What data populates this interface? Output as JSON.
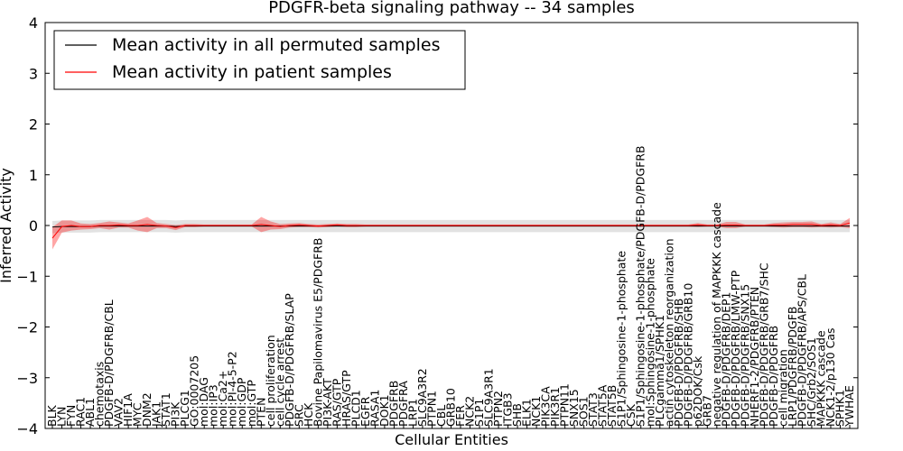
{
  "chart_data": {
    "type": "line",
    "title": "PDGFR-beta signaling pathway -- 34 samples",
    "xlabel": "Cellular Entities",
    "ylabel": "Inferred Activity",
    "ylim": [
      -4,
      4
    ],
    "yticks": [
      "4",
      "3",
      "2",
      "1",
      "0",
      "−1",
      "−2",
      "−3",
      "−4"
    ],
    "grid": false,
    "legend_position": "top-left",
    "categories": [
      "BLK",
      "LYN",
      "FYN",
      "RAC1",
      "ABL1",
      "chemotaxis",
      "PDGFB-D/PDGFRB/CBL",
      "VAV2",
      "HIF1A",
      "MYC",
      "DNM2",
      "JAK1",
      "STAT1",
      "PI3K",
      "PLCG1",
      "GO:0007205",
      "mol:DAG",
      "mol:IP3",
      "mol:Ca2+",
      "mol:PI-4-5-P2",
      "mol:GDP",
      "mol:GTP",
      "PTEN",
      "cell proliferation",
      "cell cycle arrest",
      "PDGFB-D/PDGFRB/SLAP",
      "SRC",
      "HCK",
      "Bovine Papilomavirus E5/PDGFRB",
      "PI3K-AKT",
      "RAS/GTP",
      "HRAS/GTP",
      "PLCD1",
      "EGFR",
      "RASA1",
      "DOK1",
      "PDGFRB",
      "PDGFRA",
      "LRP1",
      "SLC9A3R2",
      "PTPN1",
      "CBL",
      "GRB10",
      "FER",
      "NCK2",
      "S1P1",
      "SLC9A3R1",
      "PTPN2",
      "ITGB3",
      "SHB",
      "ELK1",
      "NCK1",
      "PIK3CA",
      "PIK3R1",
      "PTPN11",
      "SNX15",
      "SOS1",
      "STAT3",
      "STAT5A",
      "STAT5B",
      "S1P1/Sphingosine-1-phosphate",
      "CSK",
      "S1P1/Sphingosine-1-phosphate/PDGFB-D/PDGFRB",
      "mol:Sphingosine-1-phosphate",
      "PLCgamma1/SPHK1",
      "actin cytoskeleton reorganization",
      "PDGFB-D/PDGFRB/SHB",
      "PDGFB-D/PDGFRB/GRB10",
      "p62DOK/Csk",
      "GRB7",
      "negative regulation of MAPKKK cascade",
      "PDGFB-D/PDGFRB/DEP1",
      "PDGFB-D/PDGFRB/LMW-PTP",
      "PDGFB-D/PDGFRB/SNX15",
      "NHERF1-2/PDGFRB/PTEN",
      "PDGFB-D/PDGFRB/GRB7/SHC",
      "PDGFB-D/PDGFRB",
      "cell migration",
      "LRP1/PDGFRB/PDGFB",
      "PDGFB-D/PDGFRB/APS/CBL",
      "SHC/Grb2/SOS1",
      "MAPKKK cascade",
      "NCK1-2/p130 Cas",
      "SPHK1",
      "YWHAE"
    ],
    "series": [
      {
        "name": "Mean activity in all permuted samples",
        "color": "#000000",
        "values": [
          -0.03,
          -0.02,
          -0.02,
          -0.02,
          -0.02,
          -0.01,
          -0.01,
          -0.01,
          -0.01,
          -0.01,
          -0.01,
          -0.01,
          -0.01,
          -0.02,
          -0.01,
          -0.01,
          -0.01,
          -0.01,
          -0.01,
          -0.01,
          -0.01,
          -0.01,
          -0.01,
          -0.01,
          -0.01,
          -0.01,
          -0.01,
          -0.01,
          -0.01,
          -0.01,
          -0.01,
          -0.01,
          -0.01,
          -0.01,
          -0.01,
          -0.01,
          -0.01,
          -0.01,
          -0.01,
          -0.01,
          -0.01,
          -0.01,
          -0.01,
          -0.01,
          -0.01,
          -0.01,
          -0.01,
          -0.01,
          -0.01,
          -0.01,
          -0.01,
          -0.01,
          -0.01,
          -0.01,
          -0.01,
          -0.01,
          -0.01,
          -0.01,
          -0.01,
          -0.01,
          -0.01,
          -0.01,
          -0.01,
          -0.01,
          -0.01,
          -0.01,
          -0.01,
          -0.01,
          -0.01,
          -0.01,
          -0.01,
          -0.01,
          -0.01,
          -0.01,
          -0.01,
          -0.01,
          -0.01,
          -0.01,
          -0.01,
          -0.01,
          -0.01,
          -0.01,
          -0.01,
          -0.01,
          -0.01
        ],
        "band": 0.12
      },
      {
        "name": "Mean activity in patient samples",
        "color": "#ff0000",
        "values": [
          -0.25,
          -0.02,
          0.0,
          -0.02,
          -0.02,
          0.0,
          0.0,
          0.01,
          0.0,
          0.0,
          0.02,
          0.0,
          -0.01,
          -0.04,
          0.0,
          0.0,
          0.0,
          0.0,
          0.0,
          0.0,
          0.0,
          0.0,
          0.02,
          0.0,
          -0.02,
          0.0,
          0.01,
          0.0,
          -0.01,
          0.0,
          0.01,
          0.0,
          0.0,
          0.0,
          0.0,
          0.0,
          0.0,
          0.0,
          0.0,
          0.0,
          0.0,
          0.0,
          0.0,
          0.0,
          0.0,
          0.0,
          0.0,
          0.0,
          0.0,
          0.0,
          0.0,
          0.0,
          0.0,
          0.0,
          0.0,
          0.0,
          0.0,
          0.0,
          0.0,
          0.0,
          0.0,
          0.0,
          0.0,
          0.0,
          0.0,
          0.0,
          0.0,
          0.0,
          0.01,
          0.0,
          0.0,
          0.01,
          0.01,
          0.0,
          0.0,
          0.0,
          0.01,
          0.01,
          0.02,
          0.02,
          0.02,
          0.0,
          0.01,
          0.0,
          0.05
        ],
        "band": [
          0.22,
          0.12,
          0.1,
          0.06,
          0.05,
          0.05,
          0.08,
          0.05,
          0.04,
          0.1,
          0.15,
          0.05,
          0.04,
          0.05,
          0.03,
          0.03,
          0.02,
          0.02,
          0.02,
          0.02,
          0.02,
          0.02,
          0.15,
          0.08,
          0.05,
          0.04,
          0.04,
          0.03,
          0.03,
          0.03,
          0.03,
          0.03,
          0.03,
          0.02,
          0.02,
          0.02,
          0.02,
          0.02,
          0.02,
          0.02,
          0.02,
          0.02,
          0.02,
          0.02,
          0.02,
          0.02,
          0.02,
          0.02,
          0.02,
          0.02,
          0.02,
          0.02,
          0.02,
          0.02,
          0.02,
          0.02,
          0.02,
          0.02,
          0.02,
          0.02,
          0.02,
          0.02,
          0.02,
          0.02,
          0.02,
          0.02,
          0.02,
          0.02,
          0.04,
          0.02,
          0.02,
          0.06,
          0.06,
          0.02,
          0.02,
          0.02,
          0.04,
          0.05,
          0.05,
          0.05,
          0.06,
          0.03,
          0.05,
          0.03,
          0.1
        ]
      }
    ]
  }
}
